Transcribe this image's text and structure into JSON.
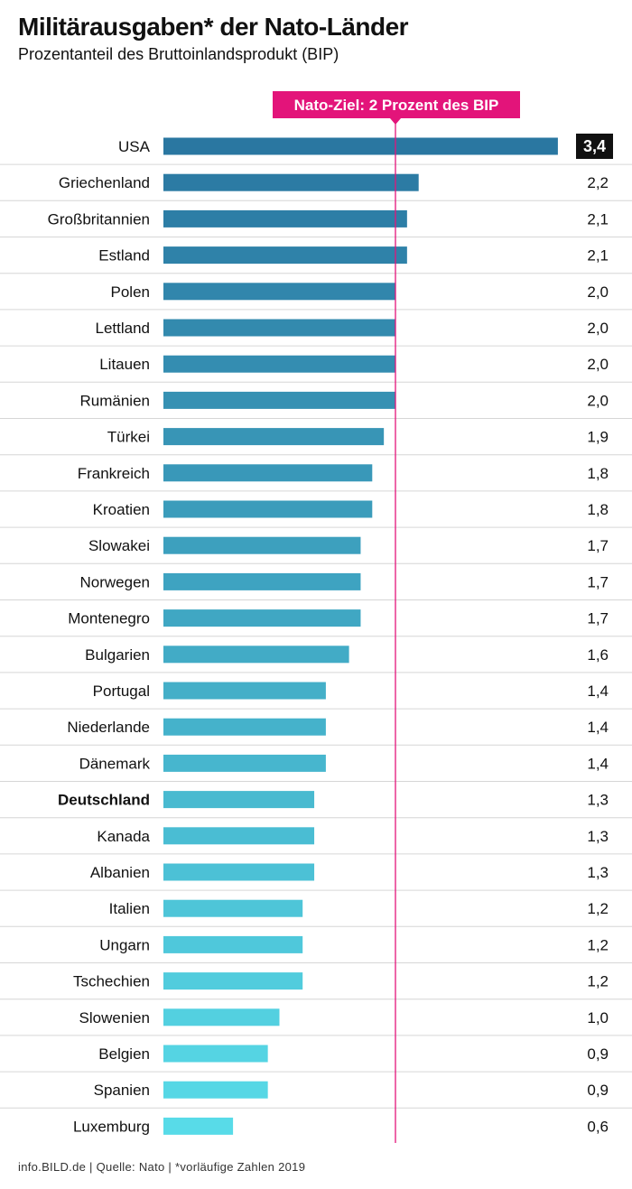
{
  "header": {
    "title": "Militärausgaben* der Nato-Länder",
    "subtitle": "Prozentanteil des Bruttoinlandsprodukt (BIP)"
  },
  "footer": {
    "source": "info.BILD.de | Quelle: Nato | *vorläufige Zahlen 2019"
  },
  "colors": {
    "bar_dark": "#2a77a1",
    "bar_light": "#58dbe8",
    "target_line": "#e3147a",
    "highlight_bg": "#111111"
  },
  "chart_data": {
    "type": "bar",
    "orientation": "horizontal",
    "title": "Militärausgaben* der Nato-Länder",
    "subtitle": "Prozentanteil des Bruttoinlandsprodukt (BIP)",
    "xlim": [
      0,
      3.4
    ],
    "reference_line": {
      "value": 2.0,
      "label": "Nato-Ziel: 2 Prozent des BIP"
    },
    "categories": [
      "USA",
      "Griechenland",
      "Großbritannien",
      "Estland",
      "Polen",
      "Lettland",
      "Litauen",
      "Rumänien",
      "Türkei",
      "Frankreich",
      "Kroatien",
      "Slowakei",
      "Norwegen",
      "Montenegro",
      "Bulgarien",
      "Portugal",
      "Niederlande",
      "Dänemark",
      "Deutschland",
      "Kanada",
      "Albanien",
      "Italien",
      "Ungarn",
      "Tschechien",
      "Slowenien",
      "Belgien",
      "Spanien",
      "Luxemburg"
    ],
    "values": [
      3.4,
      2.2,
      2.1,
      2.1,
      2.0,
      2.0,
      2.0,
      2.0,
      1.9,
      1.8,
      1.8,
      1.7,
      1.7,
      1.7,
      1.6,
      1.4,
      1.4,
      1.4,
      1.3,
      1.3,
      1.3,
      1.2,
      1.2,
      1.2,
      1.0,
      0.9,
      0.9,
      0.6
    ],
    "value_labels": [
      "3,4",
      "2,2",
      "2,1",
      "2,1",
      "2,0",
      "2,0",
      "2,0",
      "2,0",
      "1,9",
      "1,8",
      "1,8",
      "1,7",
      "1,7",
      "1,7",
      "1,6",
      "1,4",
      "1,4",
      "1,4",
      "1,3",
      "1,3",
      "1,3",
      "1,2",
      "1,2",
      "1,2",
      "1,0",
      "0,9",
      "0,9",
      "0,6"
    ],
    "bold_category": "Deutschland",
    "highlight_value_category": "USA"
  }
}
